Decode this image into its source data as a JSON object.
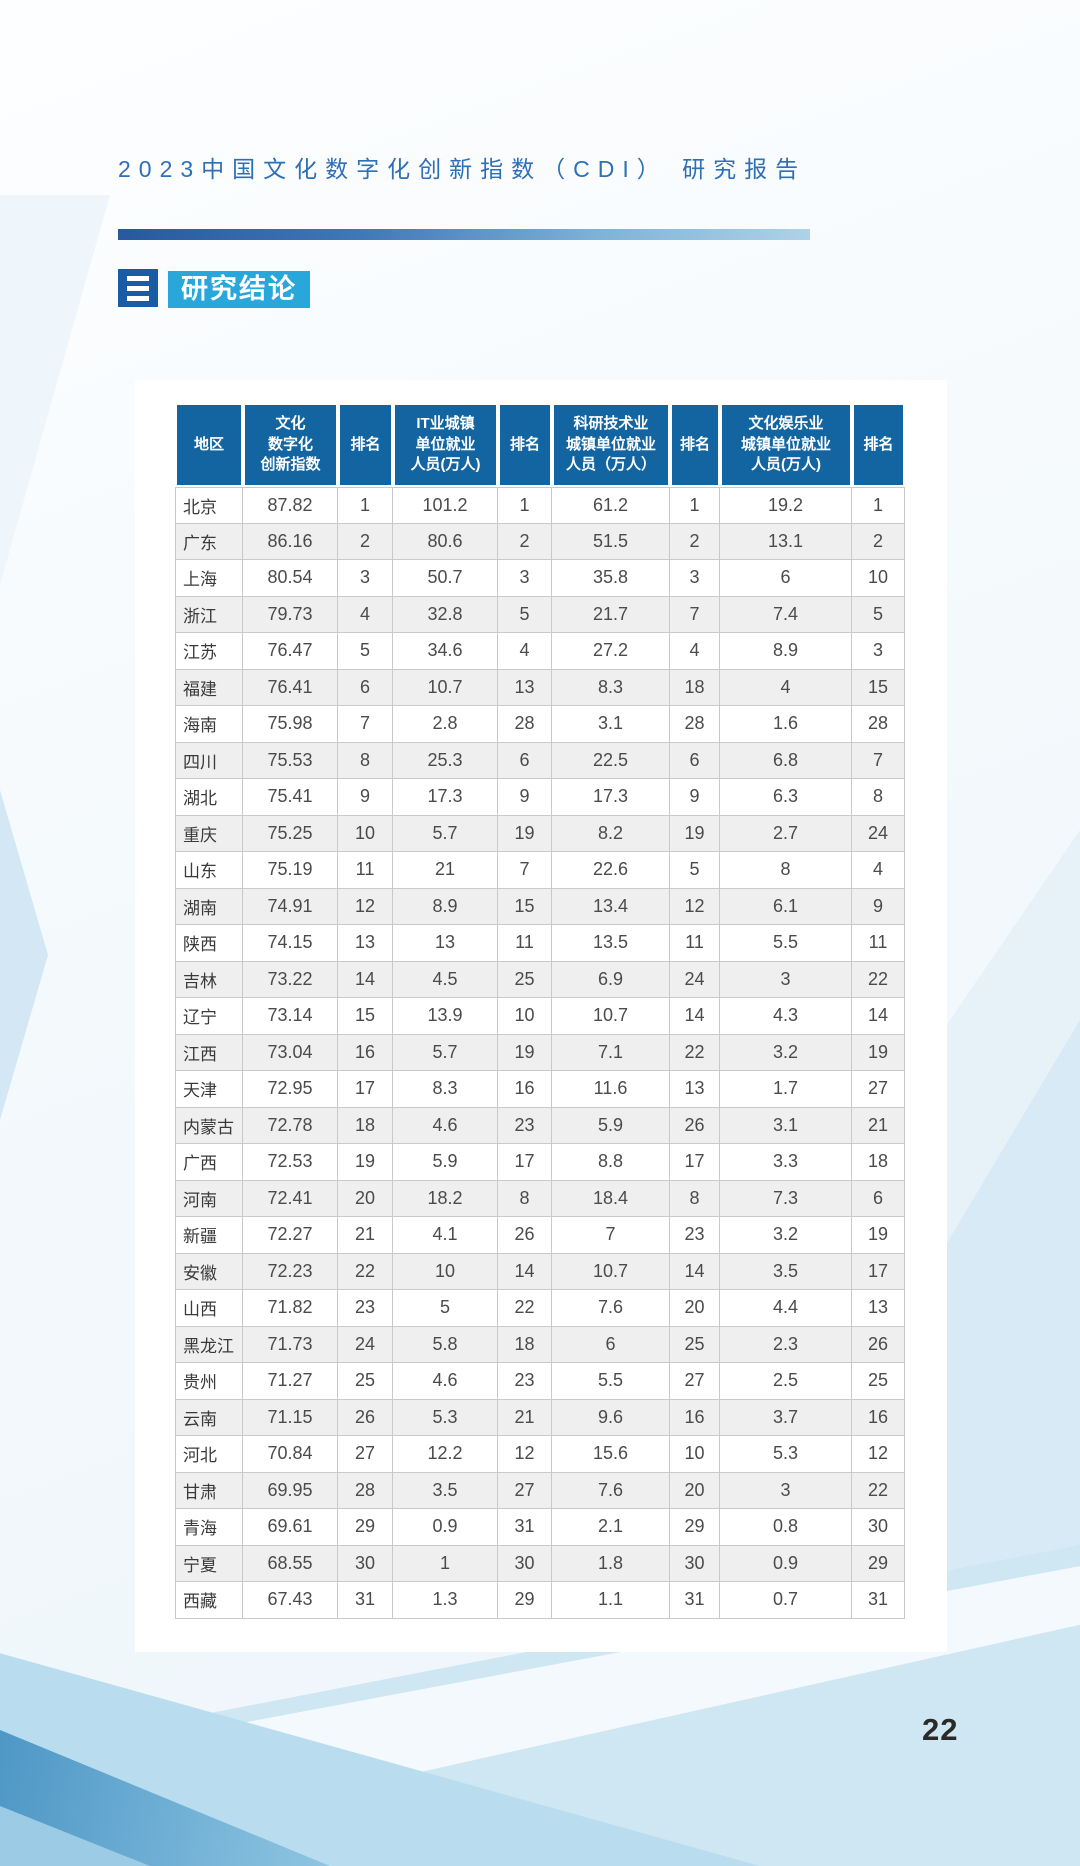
{
  "header": {
    "title": "2023中国文化数字化创新指数（CDI） 研究报告"
  },
  "section": {
    "marker_icon": "three-bars-icon",
    "title": "研究结论"
  },
  "table": {
    "headers": [
      "地区",
      "文化\n数字化\n创新指数",
      "排名",
      "IT业城镇\n单位就业\n人员(万人)",
      "排名",
      "科研技术业\n城镇单位就业\n人员（万人）",
      "排名",
      "文化娱乐业\n城镇单位就业\n人员(万人)",
      "排名"
    ],
    "rows": [
      [
        "北京",
        "87.82",
        "1",
        "101.2",
        "1",
        "61.2",
        "1",
        "19.2",
        "1"
      ],
      [
        "广东",
        "86.16",
        "2",
        "80.6",
        "2",
        "51.5",
        "2",
        "13.1",
        "2"
      ],
      [
        "上海",
        "80.54",
        "3",
        "50.7",
        "3",
        "35.8",
        "3",
        "6",
        "10"
      ],
      [
        "浙江",
        "79.73",
        "4",
        "32.8",
        "5",
        "21.7",
        "7",
        "7.4",
        "5"
      ],
      [
        "江苏",
        "76.47",
        "5",
        "34.6",
        "4",
        "27.2",
        "4",
        "8.9",
        "3"
      ],
      [
        "福建",
        "76.41",
        "6",
        "10.7",
        "13",
        "8.3",
        "18",
        "4",
        "15"
      ],
      [
        "海南",
        "75.98",
        "7",
        "2.8",
        "28",
        "3.1",
        "28",
        "1.6",
        "28"
      ],
      [
        "四川",
        "75.53",
        "8",
        "25.3",
        "6",
        "22.5",
        "6",
        "6.8",
        "7"
      ],
      [
        "湖北",
        "75.41",
        "9",
        "17.3",
        "9",
        "17.3",
        "9",
        "6.3",
        "8"
      ],
      [
        "重庆",
        "75.25",
        "10",
        "5.7",
        "19",
        "8.2",
        "19",
        "2.7",
        "24"
      ],
      [
        "山东",
        "75.19",
        "11",
        "21",
        "7",
        "22.6",
        "5",
        "8",
        "4"
      ],
      [
        "湖南",
        "74.91",
        "12",
        "8.9",
        "15",
        "13.4",
        "12",
        "6.1",
        "9"
      ],
      [
        "陕西",
        "74.15",
        "13",
        "13",
        "11",
        "13.5",
        "11",
        "5.5",
        "11"
      ],
      [
        "吉林",
        "73.22",
        "14",
        "4.5",
        "25",
        "6.9",
        "24",
        "3",
        "22"
      ],
      [
        "辽宁",
        "73.14",
        "15",
        "13.9",
        "10",
        "10.7",
        "14",
        "4.3",
        "14"
      ],
      [
        "江西",
        "73.04",
        "16",
        "5.7",
        "19",
        "7.1",
        "22",
        "3.2",
        "19"
      ],
      [
        "天津",
        "72.95",
        "17",
        "8.3",
        "16",
        "11.6",
        "13",
        "1.7",
        "27"
      ],
      [
        "内蒙古",
        "72.78",
        "18",
        "4.6",
        "23",
        "5.9",
        "26",
        "3.1",
        "21"
      ],
      [
        "广西",
        "72.53",
        "19",
        "5.9",
        "17",
        "8.8",
        "17",
        "3.3",
        "18"
      ],
      [
        "河南",
        "72.41",
        "20",
        "18.2",
        "8",
        "18.4",
        "8",
        "7.3",
        "6"
      ],
      [
        "新疆",
        "72.27",
        "21",
        "4.1",
        "26",
        "7",
        "23",
        "3.2",
        "19"
      ],
      [
        "安徽",
        "72.23",
        "22",
        "10",
        "14",
        "10.7",
        "14",
        "3.5",
        "17"
      ],
      [
        "山西",
        "71.82",
        "23",
        "5",
        "22",
        "7.6",
        "20",
        "4.4",
        "13"
      ],
      [
        "黑龙江",
        "71.73",
        "24",
        "5.8",
        "18",
        "6",
        "25",
        "2.3",
        "26"
      ],
      [
        "贵州",
        "71.27",
        "25",
        "4.6",
        "23",
        "5.5",
        "27",
        "2.5",
        "25"
      ],
      [
        "云南",
        "71.15",
        "26",
        "5.3",
        "21",
        "9.6",
        "16",
        "3.7",
        "16"
      ],
      [
        "河北",
        "70.84",
        "27",
        "12.2",
        "12",
        "15.6",
        "10",
        "5.3",
        "12"
      ],
      [
        "甘肃",
        "69.95",
        "28",
        "3.5",
        "27",
        "7.6",
        "20",
        "3",
        "22"
      ],
      [
        "青海",
        "69.61",
        "29",
        "0.9",
        "31",
        "2.1",
        "29",
        "0.8",
        "30"
      ],
      [
        "宁夏",
        "68.55",
        "30",
        "1",
        "30",
        "1.8",
        "30",
        "0.9",
        "29"
      ],
      [
        "西藏",
        "67.43",
        "31",
        "1.3",
        "29",
        "1.1",
        "31",
        "0.7",
        "31"
      ]
    ]
  },
  "footer": {
    "page_number": "22"
  },
  "colors": {
    "table_header_blue": "#1365a2",
    "section_cyan": "#29a7db",
    "section_marker_blue": "#1a5ba6",
    "title_blue": "#2f6fb5",
    "row_alternate_gray": "#efefef"
  }
}
